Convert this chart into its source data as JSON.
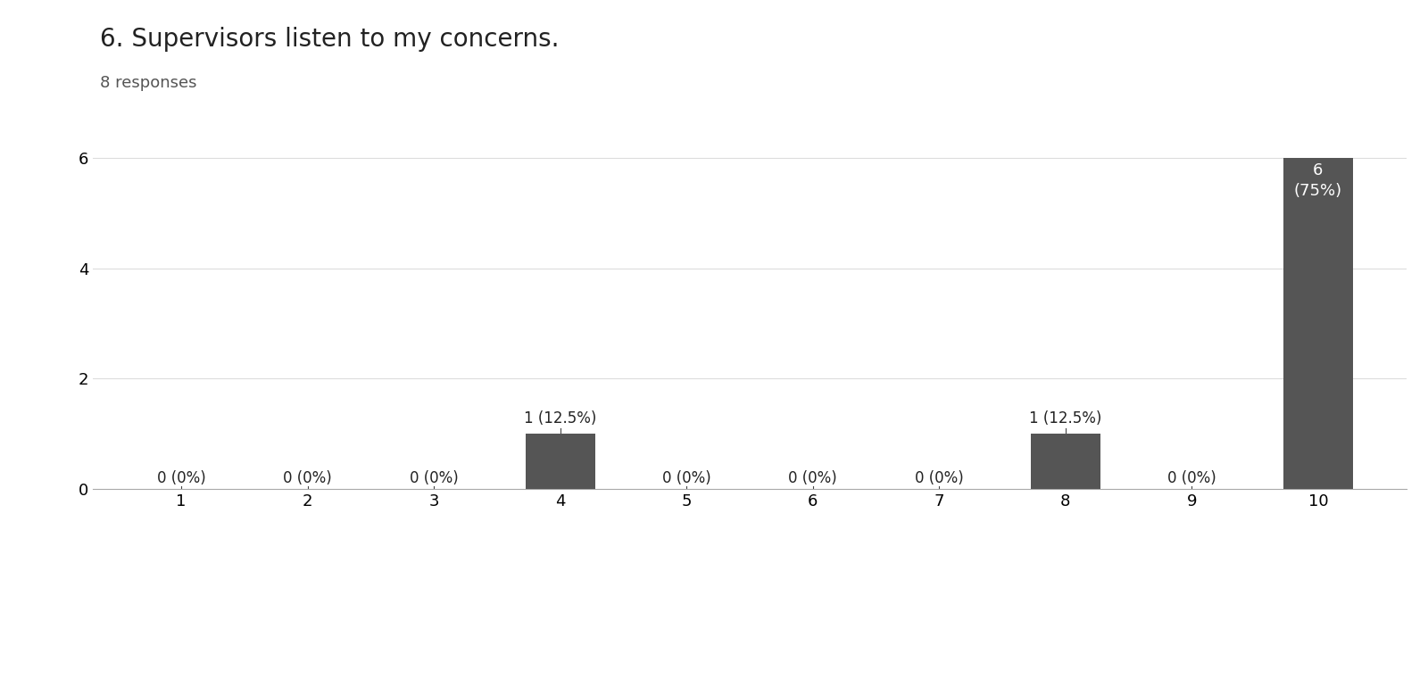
{
  "title": "6. Supervisors listen to my concerns.",
  "subtitle": "8 responses",
  "categories": [
    1,
    2,
    3,
    4,
    5,
    6,
    7,
    8,
    9,
    10
  ],
  "values": [
    0,
    0,
    0,
    1,
    0,
    0,
    0,
    1,
    0,
    6
  ],
  "bar_color": "#555555",
  "bar_labels": [
    "0 (0%)",
    "0 (0%)",
    "0 (0%)",
    "1 (12.5%)",
    "0 (0%)",
    "0 (0%)",
    "0 (0%)",
    "1 (12.5%)",
    "0 (0%)",
    "6\n(75%)"
  ],
  "label_color_inside": "#ffffff",
  "label_color_outside": "#222222",
  "ylim": [
    0,
    6.4
  ],
  "yticks": [
    0,
    2,
    4,
    6
  ],
  "title_fontsize": 20,
  "subtitle_fontsize": 13,
  "tick_fontsize": 13,
  "label_fontsize": 12,
  "background_color": "#ffffff",
  "grid_color": "#dddddd"
}
